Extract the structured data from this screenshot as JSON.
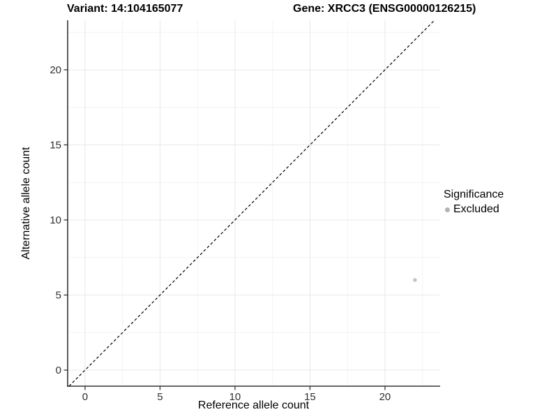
{
  "titles": {
    "left": "Variant: 14:104165077",
    "right": "Gene: XRCC3 (ENSG00000126215)"
  },
  "legend": {
    "title": "Significance",
    "items": [
      {
        "label": "Excluded",
        "color": "#b3b3b3"
      }
    ]
  },
  "chart_data": {
    "type": "scatter",
    "title": "Variant: 14:104165077 / Gene: XRCC3 (ENSG00000126215)",
    "xlabel": "Reference allele count",
    "ylabel": "Alternative allele count",
    "xlim": [
      -1.16,
      23.63
    ],
    "ylim": [
      -1.07,
      23.3
    ],
    "x_ticks": [
      0,
      5,
      10,
      15,
      20
    ],
    "y_ticks": [
      0,
      5,
      10,
      15,
      20
    ],
    "x_minor_ticks": [
      2.5,
      7.5,
      12.5,
      17.5,
      22.5
    ],
    "y_minor_ticks": [
      2.5,
      7.5,
      12.5,
      17.5,
      22.5
    ],
    "grid": true,
    "legend_position": "right",
    "reference_line": {
      "type": "identity",
      "style": "dashed",
      "color": "#000000"
    },
    "series": [
      {
        "name": "Excluded",
        "points": [
          {
            "x": 22,
            "y": 6
          }
        ],
        "color": "#c5c5c5"
      }
    ],
    "colors": {
      "grid_major": "#e8e8e8",
      "grid_minor": "#f3f3f3",
      "axis_line": "#333333",
      "tick_mark": "#333333",
      "tick_label": "#303030",
      "point": "#c5c5c5",
      "legend_point": "#b3b3b3",
      "dashed_line": "#000000"
    }
  }
}
